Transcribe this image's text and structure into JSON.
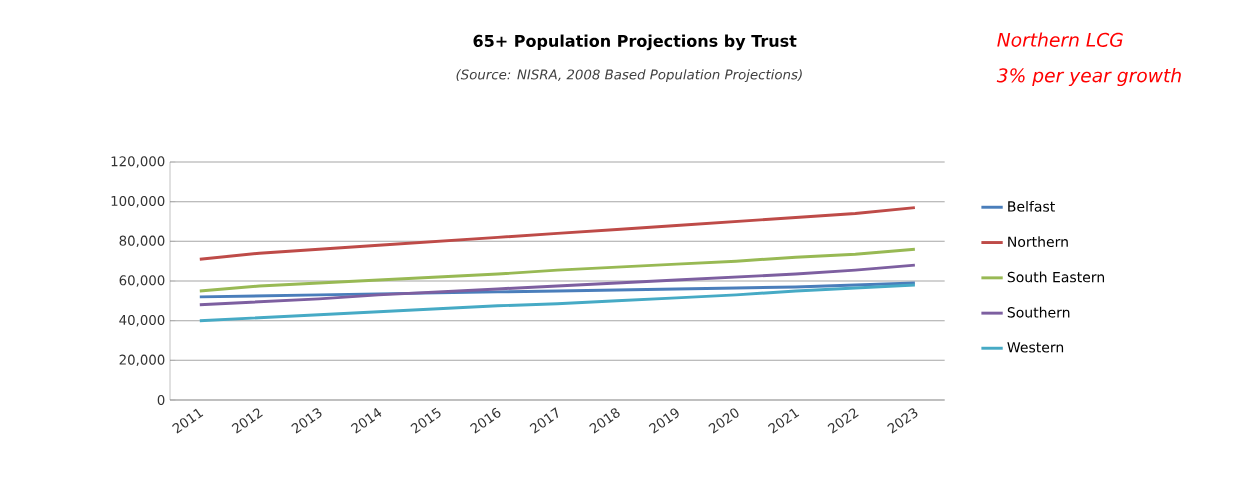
{
  "chart_data": {
    "type": "line",
    "title": "65+ Population Projections by Trust",
    "subtitle": "(Source: NISRA, 2008 Based Population Projections)",
    "annotations": [
      "Northern LCG",
      "3% per year growth"
    ],
    "categories": [
      "2011",
      "2012",
      "2013",
      "2014",
      "2015",
      "2016",
      "2017",
      "2018",
      "2019",
      "2020",
      "2021",
      "2022",
      "2023"
    ],
    "series": [
      {
        "name": "Belfast",
        "color": "#4a7ebb",
        "values": [
          52000,
          52500,
          53000,
          53500,
          54000,
          54500,
          55000,
          55500,
          56000,
          56500,
          57000,
          58000,
          59000
        ]
      },
      {
        "name": "Northern",
        "color": "#be4b48",
        "values": [
          71000,
          74000,
          76000,
          78000,
          80000,
          82000,
          84000,
          86000,
          88000,
          90000,
          92000,
          94000,
          97000
        ]
      },
      {
        "name": "South Eastern",
        "color": "#98b954",
        "values": [
          55000,
          57500,
          59000,
          60500,
          62000,
          63500,
          65500,
          67000,
          68500,
          70000,
          72000,
          73500,
          76000
        ]
      },
      {
        "name": "Southern",
        "color": "#7d5fa0",
        "values": [
          48000,
          49500,
          51000,
          53000,
          54500,
          56000,
          57500,
          59000,
          60500,
          62000,
          63500,
          65500,
          68000
        ]
      },
      {
        "name": "Western",
        "color": "#46aac5",
        "values": [
          40000,
          41500,
          43000,
          44500,
          46000,
          47500,
          48500,
          50000,
          51500,
          53000,
          55000,
          56500,
          58000
        ]
      }
    ],
    "ylim": [
      0,
      120000
    ],
    "yticks": [
      0,
      {
        "value": 20000,
        "label": "20,000"
      },
      {
        "value": 40000,
        "label": "40,000"
      },
      {
        "value": 60000,
        "label": "60,000"
      },
      {
        "value": 80000,
        "label": "80,000"
      },
      {
        "value": 100000,
        "label": "100,000"
      },
      {
        "value": 120000,
        "label": "120,000"
      }
    ],
    "grid": "y",
    "legend": "right",
    "marker": "none"
  }
}
